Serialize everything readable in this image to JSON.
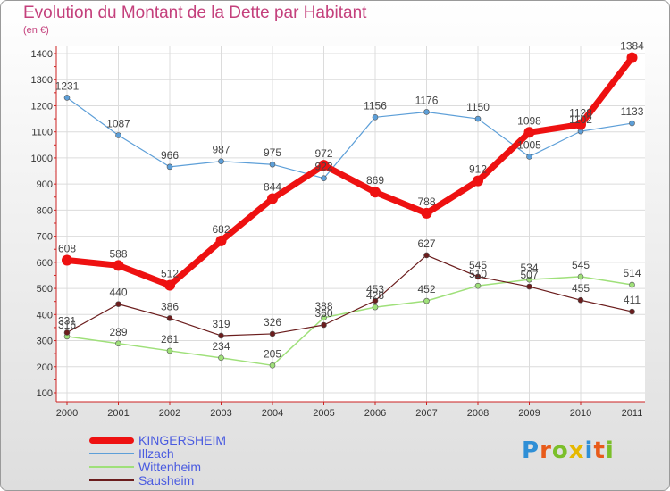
{
  "title": "Evolution du Montant de la Dette par Habitant",
  "unit_label": "(en €)",
  "logo_text": "Proxiti",
  "logo_colors": [
    "#2f8fd6",
    "#e85b1a",
    "#7bbf2a",
    "#e6b800",
    "#2f8fd6",
    "#e85b1a",
    "#7bbf2a"
  ],
  "chart_data": {
    "type": "line",
    "x": [
      "2000",
      "2001",
      "2002",
      "2003",
      "2004",
      "2005",
      "2006",
      "2007",
      "2008",
      "2009",
      "2010",
      "2011"
    ],
    "ylim": [
      100,
      1400
    ],
    "yticks": [
      100,
      200,
      300,
      400,
      500,
      600,
      700,
      800,
      900,
      1000,
      1100,
      1200,
      1300,
      1400
    ],
    "grid": true,
    "legend_position": "bottom-left",
    "series": [
      {
        "name": "Illzach",
        "color": "#5d9fd8",
        "width": 1.2,
        "marker": 3,
        "values": [
          1231,
          1087,
          966,
          987,
          975,
          922,
          1156,
          1176,
          1150,
          1005,
          1102,
          1133
        ],
        "labels": [
          "1231",
          "1087",
          "966",
          "987",
          "975",
          "922",
          "1156",
          "1176",
          "1150",
          "1005",
          "1102",
          "1133"
        ]
      },
      {
        "name": "Wittenheim",
        "color": "#9fe07a",
        "width": 1.5,
        "marker": 3,
        "values": [
          316,
          289,
          261,
          234,
          205,
          388,
          428,
          452,
          510,
          534,
          545,
          514
        ],
        "labels": [
          "316",
          "289",
          "261",
          "234",
          "205",
          "388",
          "428",
          "452",
          "510",
          "534",
          "545",
          "514"
        ]
      },
      {
        "name": "Sausheim",
        "color": "#6b1d1d",
        "width": 1.2,
        "marker": 3,
        "values": [
          331,
          440,
          386,
          319,
          326,
          360,
          453,
          627,
          545,
          507,
          455,
          411
        ],
        "labels": [
          "331",
          "440",
          "386",
          "319",
          "326",
          "360",
          "453",
          "627",
          "545",
          "507",
          "455",
          "411"
        ]
      },
      {
        "name": "KINGERSHEIM",
        "color": "#ee1111",
        "width": 7,
        "marker": 6,
        "values": [
          608,
          588,
          512,
          682,
          844,
          972,
          869,
          788,
          912,
          1098,
          1128,
          1384
        ],
        "labels": [
          "608",
          "588",
          "512",
          "682",
          "844",
          "972",
          "869",
          "788",
          "912",
          "1098",
          "1128",
          "1384"
        ]
      }
    ]
  },
  "legend": [
    {
      "name": "KINGERSHEIM",
      "color": "#ee1111",
      "thickness": 7
    },
    {
      "name": "Illzach",
      "color": "#5d9fd8",
      "thickness": 2
    },
    {
      "name": "Wittenheim",
      "color": "#9fe07a",
      "thickness": 2
    },
    {
      "name": "Sausheim",
      "color": "#6b1d1d",
      "thickness": 2
    }
  ]
}
